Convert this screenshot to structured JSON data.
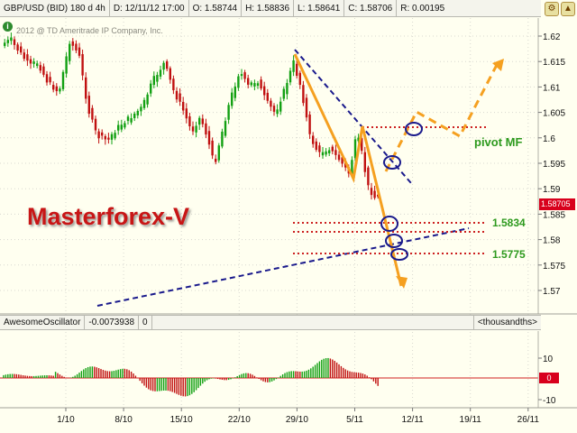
{
  "info_bar": {
    "symbol": "GBP/USD (BID) 180 d 4h",
    "date": "D: 12/11/12 17:00",
    "open": "O: 1.58744",
    "high": "H: 1.58836",
    "low": "L: 1.58641",
    "close": "C: 1.58706",
    "range": "R: 0.00195"
  },
  "copyright": "2012 @ TD Ameritrade IP Company, Inc.",
  "watermark": "Masterforex-V",
  "price_axis": {
    "ticks": [
      "1.62",
      "1.615",
      "1.61",
      "1.605",
      "1.6",
      "1.595",
      "1.59",
      "1.585",
      "1.58",
      "1.575",
      "1.57"
    ],
    "current_price": "1.58705"
  },
  "annotations": {
    "pivot_label": "pivot MF",
    "level_1": "1.5834",
    "level_2": "1.5775"
  },
  "oscillator_bar": {
    "name": "AwesomeOscillator",
    "value": "-0.0073938",
    "zero": "0",
    "units": "<thousandths>"
  },
  "oscillator_axis": {
    "ticks": [
      "10",
      "0",
      "-10"
    ],
    "zero_badge": "0"
  },
  "time_axis": {
    "ticks": [
      "1/10",
      "8/10",
      "15/10",
      "22/10",
      "29/10",
      "5/11",
      "12/11",
      "19/11",
      "26/11"
    ]
  },
  "colors": {
    "up_candle": "#12a012",
    "down_candle": "#c01010",
    "trend_blue": "#1a1a8c",
    "forecast_orange": "#f5a020",
    "level_red": "#cc2020",
    "pivot_green": "#2e9a1e",
    "watermark_red": "#c81414"
  }
}
